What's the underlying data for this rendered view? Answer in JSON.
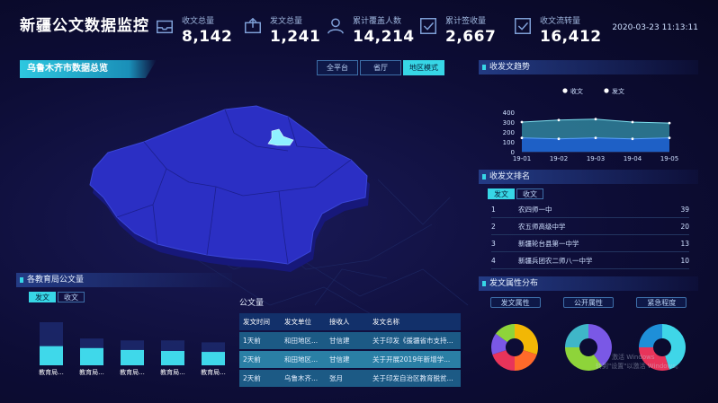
{
  "header": {
    "title": "新疆公文数据监控",
    "datetime": "2020-03-23 11:13:11",
    "stats": [
      {
        "label": "收文总量",
        "value": "8,142",
        "icon": "inbox-icon"
      },
      {
        "label": "发文总量",
        "value": "1,241",
        "icon": "outbox-icon"
      },
      {
        "label": "累计覆盖人数",
        "value": "14,214",
        "icon": "user-icon"
      },
      {
        "label": "累计签收量",
        "value": "2,667",
        "icon": "checkbox-icon"
      },
      {
        "label": "收文流转量",
        "value": "16,412",
        "icon": "checkbox-icon"
      }
    ]
  },
  "map": {
    "region_title": "乌鲁木齐市数据总览",
    "modes": [
      "全平台",
      "省厅",
      "地区模式"
    ],
    "active_mode": "地区模式",
    "colors": {
      "map_fill": "#2a2ec0",
      "highlight": "#8ff0ff"
    }
  },
  "trend": {
    "title": "收发文趋势",
    "legend": [
      "收文",
      "发文"
    ],
    "chart_data": {
      "type": "area",
      "x": [
        "19-01",
        "19-02",
        "19-03",
        "19-04",
        "19-05"
      ],
      "ylim": [
        0,
        400
      ],
      "yticks": [
        0,
        100,
        200,
        300,
        400
      ],
      "series": [
        {
          "name": "收文",
          "values": [
            300,
            320,
            330,
            300,
            290
          ],
          "color": "#3fb6c8"
        },
        {
          "name": "发文",
          "values": [
            140,
            130,
            140,
            130,
            140
          ],
          "color": "#1e5fc9"
        }
      ]
    }
  },
  "ranking": {
    "title": "收发文排名",
    "tabs": [
      "发文",
      "收文"
    ],
    "active_tab": "发文",
    "rows": [
      {
        "rank": "1",
        "name": "农四师一中",
        "value": "39"
      },
      {
        "rank": "2",
        "name": "农五师高级中学",
        "value": "20"
      },
      {
        "rank": "3",
        "name": "新疆轮台县第一中学",
        "value": "13"
      },
      {
        "rank": "4",
        "name": "新疆兵团农二师八一中学",
        "value": "10"
      }
    ]
  },
  "bureau": {
    "title": "各教育局公文量",
    "tabs": [
      "发文",
      "收文"
    ],
    "active_tab": "发文",
    "chart_data": {
      "type": "bar",
      "categories": [
        "教育局...",
        "教育局...",
        "教育局...",
        "教育局...",
        "教育局..."
      ],
      "values": [
        20,
        18,
        16,
        15,
        14
      ],
      "shadow": [
        45,
        28,
        26,
        26,
        24
      ]
    }
  },
  "documents": {
    "title": "公文量",
    "columns": [
      "发文时间",
      "发文单位",
      "接收人",
      "发文名称"
    ],
    "rows": [
      [
        "1天前",
        "和田地区...",
        "甘信建",
        "关于印发《援疆省市支持..."
      ],
      [
        "2天前",
        "和田地区...",
        "甘信建",
        "关于开展2019年新增学..."
      ],
      [
        "2天前",
        "乌鲁木齐...",
        "张月",
        "关于印发自治区教育脱贫..."
      ]
    ]
  },
  "attributes": {
    "title": "发文属性分布",
    "labels": [
      "发文属性",
      "公开属性",
      "紧急程度"
    ],
    "donuts": [
      {
        "segments": [
          {
            "value": 30,
            "color": "#f2b705"
          },
          {
            "value": 20,
            "color": "#ff6a2a"
          },
          {
            "value": 20,
            "color": "#e8345a"
          },
          {
            "value": 15,
            "color": "#7a58e6"
          },
          {
            "value": 15,
            "color": "#8ed43a"
          }
        ]
      },
      {
        "segments": [
          {
            "value": 40,
            "color": "#7a58e6"
          },
          {
            "value": 35,
            "color": "#8ed43a"
          },
          {
            "value": 25,
            "color": "#3fb6c8"
          }
        ]
      },
      {
        "segments": [
          {
            "value": 45,
            "color": "#3fd6e8"
          },
          {
            "value": 30,
            "color": "#e8345a"
          },
          {
            "value": 25,
            "color": "#1e8fd8"
          }
        ]
      }
    ]
  },
  "watermark": {
    "line1": "激活 Windows",
    "line2": "转到\"设置\"以激活 Windows。"
  }
}
